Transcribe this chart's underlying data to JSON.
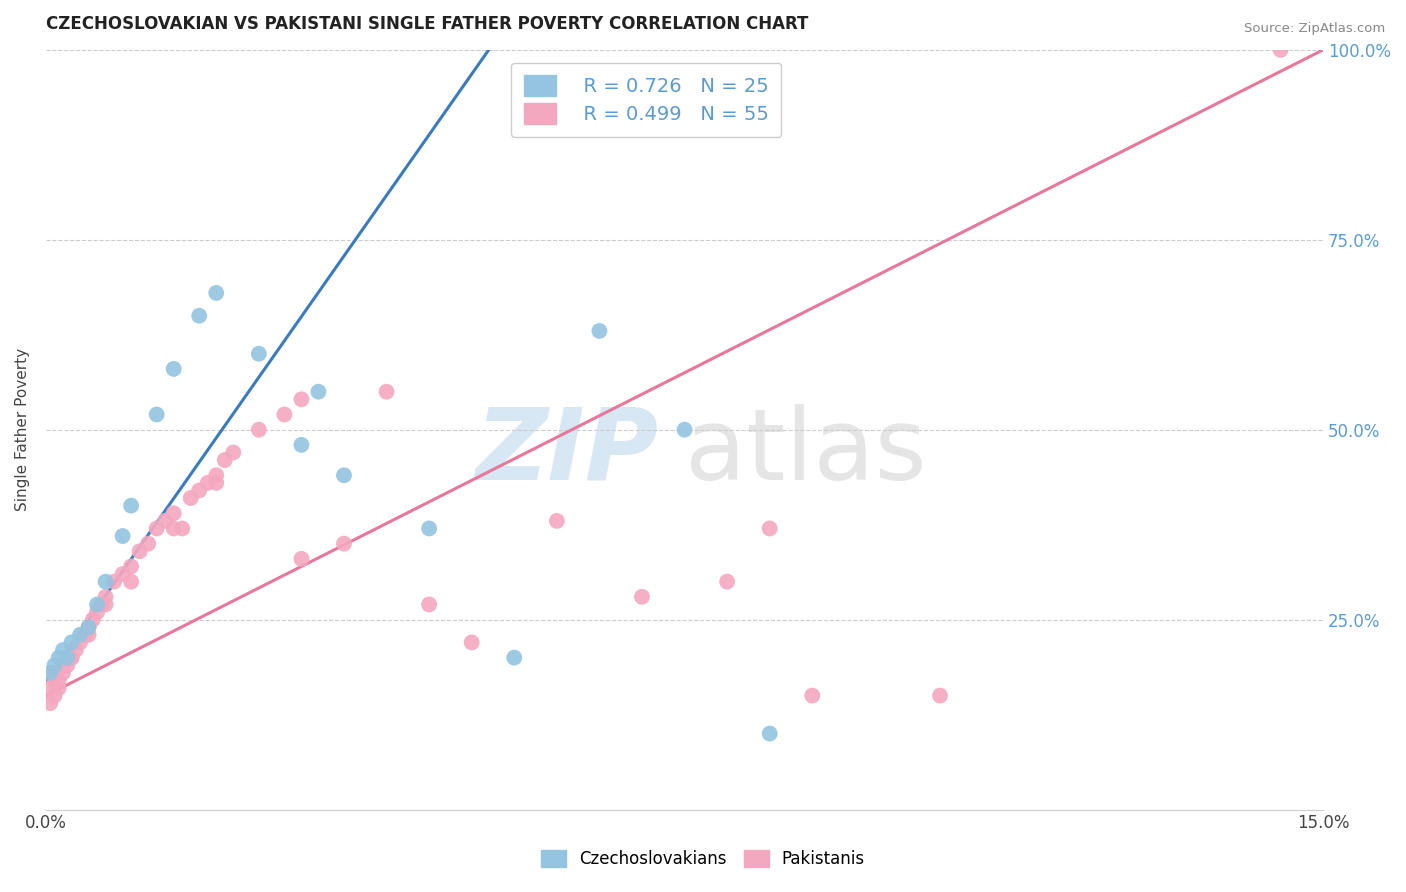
{
  "title": "CZECHOSLOVAKIAN VS PAKISTANI SINGLE FATHER POVERTY CORRELATION CHART",
  "source": "Source: ZipAtlas.com",
  "ylabel": "Single Father Poverty",
  "xlim": [
    0.0,
    15.0
  ],
  "ylim": [
    0.0,
    100.0
  ],
  "legend_blue_r": "R = 0.726",
  "legend_blue_n": "N = 25",
  "legend_pink_r": "R = 0.499",
  "legend_pink_n": "N = 55",
  "blue_color": "#94c4e0",
  "pink_color": "#f4a8c0",
  "blue_line_color": "#3a7bbf",
  "pink_line_color": "#e8789a",
  "background_color": "#ffffff",
  "grid_color": "#cccccc",
  "right_tick_color": "#5b9bd5",
  "blue_scatter_x": [
    0.05,
    0.1,
    0.15,
    0.2,
    0.25,
    0.3,
    0.4,
    0.5,
    0.6,
    0.7,
    0.9,
    1.0,
    1.3,
    1.5,
    1.8,
    2.0,
    2.5,
    3.0,
    3.2,
    3.5,
    4.5,
    5.5,
    6.5,
    7.5,
    8.5
  ],
  "blue_scatter_y": [
    18,
    19,
    20,
    21,
    20,
    22,
    23,
    24,
    27,
    30,
    36,
    40,
    52,
    58,
    65,
    68,
    60,
    48,
    55,
    44,
    37,
    20,
    63,
    50,
    10
  ],
  "pink_scatter_x": [
    0.05,
    0.1,
    0.1,
    0.15,
    0.2,
    0.2,
    0.25,
    0.3,
    0.35,
    0.4,
    0.45,
    0.5,
    0.55,
    0.6,
    0.65,
    0.7,
    0.8,
    0.9,
    1.0,
    1.1,
    1.2,
    1.3,
    1.4,
    1.5,
    1.6,
    1.7,
    1.8,
    1.9,
    2.0,
    2.1,
    2.2,
    2.5,
    2.8,
    3.0,
    3.5,
    4.0,
    4.5,
    5.0,
    6.0,
    7.0,
    8.0,
    8.5,
    9.0,
    10.5,
    14.5,
    0.05,
    0.1,
    0.15,
    0.3,
    0.5,
    0.7,
    1.0,
    1.5,
    2.0,
    3.0
  ],
  "pink_scatter_y": [
    16,
    17,
    18,
    17,
    18,
    19,
    19,
    20,
    21,
    22,
    23,
    24,
    25,
    26,
    27,
    28,
    30,
    31,
    32,
    34,
    35,
    37,
    38,
    39,
    37,
    41,
    42,
    43,
    44,
    46,
    47,
    50,
    52,
    54,
    35,
    55,
    27,
    22,
    38,
    28,
    30,
    37,
    15,
    15,
    100,
    14,
    15,
    16,
    20,
    23,
    27,
    30,
    37,
    43,
    33
  ],
  "blue_line_x0": 0.0,
  "blue_line_y0": 17.0,
  "blue_line_x1": 5.2,
  "blue_line_y1": 100.0,
  "pink_line_x0": 0.0,
  "pink_line_y0": 15.0,
  "pink_line_x1": 15.0,
  "pink_line_y1": 100.0
}
